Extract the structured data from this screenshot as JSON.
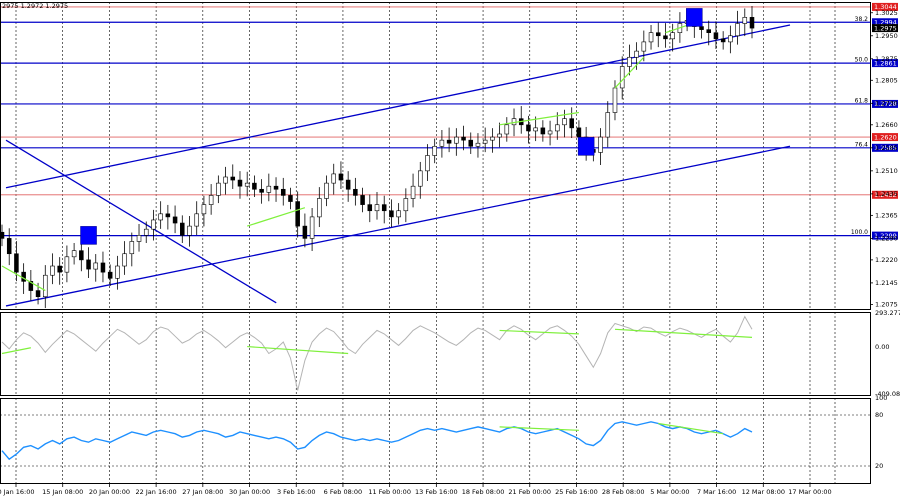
{
  "header": {
    "ohlc": "2975 1.2972 1.2975"
  },
  "colors": {
    "candle": "#000000",
    "hline_blue": "#0000c8",
    "hline_red": "#e06060",
    "channel": "#0000c8",
    "divergence": "#7ff03c",
    "cci_line": "#b4b4b4",
    "rsi_line": "#1e90ff",
    "box": "#0000ff",
    "grid": "#000000"
  },
  "chart_data": [
    {
      "type": "line",
      "role": "price-candlestick",
      "y_axis_min": 1.206,
      "y_axis_max": 1.306,
      "y_ticks": [
        "1.3025",
        "1.2950",
        "1.2875",
        "1.2805",
        "1.2730",
        "1.2660",
        "1.2585",
        "1.2510",
        "1.2435",
        "1.2365",
        "1.2290",
        "1.2220",
        "1.2145",
        "1.2075"
      ],
      "y_tick_values": [
        1.3025,
        1.295,
        1.2875,
        1.2805,
        1.273,
        1.266,
        1.2585,
        1.251,
        1.2435,
        1.2365,
        1.229,
        1.222,
        1.2145,
        1.2075
      ],
      "x_ticks": [
        "0 Jan 16:00",
        "15 Jan 08:00",
        "20 Jan 00:00",
        "22 Jan 16:00",
        "27 Jan 08:00",
        "30 Jan 00:00",
        "3 Feb 16:00",
        "6 Feb 08:00",
        "11 Feb 00:00",
        "13 Feb 16:00",
        "18 Feb 08:00",
        "21 Feb 00:00",
        "25 Feb 16:00",
        "28 Feb 08:00",
        "5 Mar 00:00",
        "7 Mar 16:00",
        "12 Mar 08:00",
        "17 Mar 00:00"
      ],
      "price_levels": [
        {
          "label": "1.3044",
          "value": 1.3044,
          "kind": "red"
        },
        {
          "label": "1.2994",
          "value": 1.2994,
          "kind": "blue",
          "fib": "38.2"
        },
        {
          "label": "1.2975",
          "value": 1.2975,
          "kind": "current"
        },
        {
          "label": "1.2861",
          "value": 1.2861,
          "kind": "blue",
          "fib": "50.0"
        },
        {
          "label": "1.2728",
          "value": 1.2728,
          "kind": "blue",
          "fib": "61.8"
        },
        {
          "label": "1.2620",
          "value": 1.262,
          "kind": "red"
        },
        {
          "label": "1.2585",
          "value": 1.2585,
          "kind": "blue",
          "fib": "76.4"
        },
        {
          "label": "1.2432",
          "value": 1.2432,
          "kind": "red"
        },
        {
          "label": "1.2299",
          "value": 1.2299,
          "kind": "blue",
          "fib": "100.0"
        }
      ],
      "closes": [
        1.229,
        1.224,
        1.218,
        1.215,
        1.212,
        1.21,
        1.217,
        1.22,
        1.218,
        1.223,
        1.225,
        1.222,
        1.219,
        1.221,
        1.218,
        1.216,
        1.22,
        1.224,
        1.228,
        1.23,
        1.232,
        1.235,
        1.237,
        1.236,
        1.234,
        1.23,
        1.233,
        1.237,
        1.24,
        1.243,
        1.247,
        1.249,
        1.248,
        1.246,
        1.247,
        1.245,
        1.244,
        1.246,
        1.245,
        1.243,
        1.241,
        1.233,
        1.229,
        1.236,
        1.242,
        1.247,
        1.25,
        1.248,
        1.245,
        1.243,
        1.24,
        1.238,
        1.24,
        1.238,
        1.236,
        1.238,
        1.242,
        1.246,
        1.251,
        1.256,
        1.259,
        1.261,
        1.26,
        1.262,
        1.261,
        1.259,
        1.26,
        1.261,
        1.262,
        1.263,
        1.266,
        1.268,
        1.266,
        1.264,
        1.265,
        1.263,
        1.264,
        1.266,
        1.268,
        1.265,
        1.262,
        1.258,
        1.257,
        1.262,
        1.27,
        1.278,
        1.285,
        1.288,
        1.29,
        1.293,
        1.296,
        1.295,
        1.294,
        1.296,
        1.299,
        1.3,
        1.298,
        1.297,
        1.296,
        1.294,
        1.293,
        1.295,
        1.299,
        1.301,
        1.2975
      ],
      "horizontal_lines_note": "",
      "channel_lines": [
        {
          "from": [
            "0 Jan 16:00",
            1.2455
          ],
          "to": [
            "17 Mar 00:00",
            1.2985
          ]
        },
        {
          "from": [
            "0 Jan 16:00",
            1.207
          ],
          "to": [
            "17 Mar 00:00",
            1.259
          ]
        },
        {
          "from": [
            "0 Jan 16:00",
            1.261
          ],
          "to": [
            "3 Feb 16:00",
            1.208
          ]
        }
      ]
    },
    {
      "type": "line",
      "role": "cci-oscillator",
      "y_ticks": [
        "293.2779",
        "0.00",
        "-409.084"
      ],
      "y_tick_values": [
        293.2779,
        0,
        -409.084
      ],
      "values": [
        40,
        -20,
        60,
        120,
        90,
        30,
        -50,
        20,
        80,
        140,
        110,
        60,
        10,
        -40,
        30,
        90,
        150,
        120,
        70,
        20,
        60,
        130,
        170,
        150,
        90,
        30,
        60,
        110,
        140,
        100,
        50,
        -10,
        40,
        90,
        120,
        80,
        30,
        -60,
        -20,
        40,
        -100,
        -380,
        -120,
        40,
        110,
        160,
        130,
        60,
        -20,
        -60,
        20,
        80,
        140,
        110,
        60,
        10,
        70,
        140,
        180,
        150,
        120,
        80,
        40,
        10,
        60,
        120,
        160,
        140,
        100,
        60,
        140,
        180,
        150,
        100,
        60,
        110,
        160,
        180,
        140,
        90,
        20,
        -80,
        -180,
        -60,
        120,
        200,
        180,
        160,
        130,
        170,
        160,
        120,
        90,
        130,
        160,
        140,
        110,
        80,
        120,
        150,
        90,
        40,
        120,
        260,
        150
      ]
    },
    {
      "type": "line",
      "role": "rsi-oscillator",
      "y_ticks": [
        "100",
        "80",
        "20"
      ],
      "y_tick_values": [
        100,
        80,
        20
      ],
      "y_range": [
        0,
        100
      ],
      "values": [
        38,
        28,
        34,
        42,
        44,
        40,
        46,
        50,
        46,
        52,
        54,
        50,
        48,
        52,
        50,
        48,
        52,
        56,
        60,
        58,
        56,
        60,
        62,
        60,
        58,
        54,
        56,
        60,
        62,
        60,
        58,
        54,
        56,
        60,
        58,
        56,
        54,
        52,
        54,
        52,
        48,
        40,
        42,
        50,
        56,
        60,
        58,
        54,
        52,
        50,
        52,
        50,
        52,
        50,
        48,
        50,
        54,
        58,
        62,
        64,
        62,
        64,
        62,
        60,
        62,
        64,
        66,
        64,
        62,
        60,
        64,
        66,
        64,
        60,
        58,
        60,
        62,
        64,
        60,
        56,
        52,
        46,
        44,
        50,
        62,
        70,
        72,
        70,
        68,
        70,
        72,
        70,
        66,
        64,
        66,
        64,
        60,
        58,
        60,
        62,
        58,
        54,
        58,
        64,
        60
      ]
    }
  ]
}
